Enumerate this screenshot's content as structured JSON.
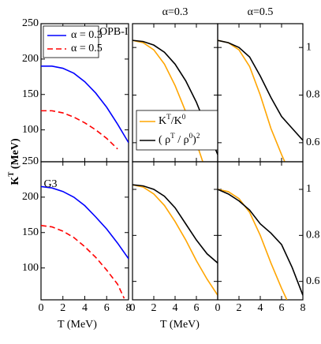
{
  "chart_data": [
    {
      "type": "line",
      "annotation": "IOPB-I",
      "legend": true,
      "ylabel": [
        {
          "text": "K"
        },
        {
          "sup": "T"
        },
        {
          "text": " (MeV)"
        }
      ],
      "xlim": [
        0,
        8
      ],
      "xticks": [
        0,
        2,
        4,
        6,
        8
      ],
      "show_xtick_labels": false,
      "ylim": [
        55,
        250
      ],
      "yticks": [
        100,
        150,
        200,
        250
      ],
      "ytick_side": "left",
      "series": [
        {
          "name": "α = 0.3",
          "color": "#0000ff",
          "x": [
            0,
            1,
            2,
            3,
            4,
            5,
            6,
            7,
            8
          ],
          "values": [
            190,
            190,
            187,
            180,
            168,
            152,
            132,
            108,
            82
          ]
        },
        {
          "name": "α = 0.5",
          "color": "#ff0000",
          "dashed": true,
          "x": [
            0,
            1,
            2,
            3,
            4,
            5,
            6,
            7
          ],
          "values": [
            127,
            127,
            124,
            118,
            110,
            100,
            88,
            73
          ]
        }
      ]
    },
    {
      "type": "line",
      "annotation": "G3",
      "xlabel": "T (MeV)",
      "xlim": [
        0,
        8
      ],
      "xticks": [
        0,
        2,
        4,
        6,
        8
      ],
      "show_xtick_labels": true,
      "ylim": [
        55,
        250
      ],
      "yticks": [
        100,
        150,
        200,
        250
      ],
      "ytick_side": "left",
      "series": [
        {
          "color": "#0000ff",
          "x": [
            0,
            1,
            2,
            3,
            4,
            5,
            6,
            7,
            8
          ],
          "values": [
            215,
            213,
            208,
            200,
            188,
            172,
            155,
            135,
            113
          ]
        },
        {
          "color": "#ff0000",
          "dashed": true,
          "x": [
            0,
            1,
            2,
            3,
            4,
            5,
            6,
            7,
            7.6
          ],
          "values": [
            160,
            158,
            152,
            143,
            130,
            115,
            97,
            77,
            57
          ]
        }
      ]
    },
    {
      "type": "line",
      "title": "α=0.3",
      "legend_entries": [
        [
          {
            "text": "K"
          },
          {
            "sup": "T"
          },
          {
            "text": "/K"
          },
          {
            "sup": "0"
          }
        ],
        [
          {
            "text": "( ρ"
          },
          {
            "sup": "T"
          },
          {
            "text": " / ρ"
          },
          {
            "sup": "0"
          },
          {
            "text": ")"
          },
          {
            "sup": "2"
          }
        ]
      ],
      "xlim": [
        0,
        8
      ],
      "xticks": [
        0,
        2,
        4,
        6,
        8
      ],
      "show_xtick_labels": false,
      "ylim": [
        0.52,
        1.1
      ],
      "yticks": [
        0.6,
        0.8,
        1
      ],
      "ytick_side": "none",
      "series": [
        {
          "color": "#ffa500",
          "x": [
            0,
            1,
            2,
            3,
            4,
            5,
            6,
            6.6
          ],
          "values": [
            1.03,
            1.02,
            0.99,
            0.93,
            0.84,
            0.73,
            0.6,
            0.52
          ]
        },
        {
          "color": "#000000",
          "x": [
            0,
            1,
            2,
            3,
            4,
            5,
            6,
            7,
            8
          ],
          "values": [
            1.03,
            1.025,
            1.01,
            0.98,
            0.93,
            0.86,
            0.77,
            0.66,
            0.55
          ]
        }
      ]
    },
    {
      "type": "line",
      "title": "α=0.5",
      "xlim": [
        0,
        8
      ],
      "xticks": [
        0,
        2,
        4,
        6,
        8
      ],
      "show_xtick_labels": false,
      "ylim": [
        0.52,
        1.1
      ],
      "yticks": [
        0.6,
        0.8,
        1
      ],
      "ytick_side": "right",
      "series": [
        {
          "color": "#ffa500",
          "x": [
            0,
            1,
            2,
            3,
            4,
            5,
            6,
            6.3
          ],
          "values": [
            1.03,
            1.02,
            0.99,
            0.92,
            0.8,
            0.66,
            0.55,
            0.52
          ]
        },
        {
          "color": "#000000",
          "x": [
            0,
            1,
            2,
            3,
            4,
            5,
            6,
            7,
            8
          ],
          "values": [
            1.03,
            1.02,
            1.0,
            0.96,
            0.88,
            0.79,
            0.71,
            0.66,
            0.61
          ]
        }
      ]
    },
    {
      "type": "line",
      "xlabel": "T (MeV)",
      "xlim": [
        0,
        8
      ],
      "xticks": [
        0,
        2,
        4,
        6
      ],
      "show_xtick_labels": true,
      "ylim": [
        0.52,
        1.12
      ],
      "yticks": [
        0.6,
        0.8,
        1
      ],
      "ytick_side": "none",
      "series": [
        {
          "color": "#ffa500",
          "x": [
            0,
            1,
            2,
            3,
            4,
            5,
            6,
            7,
            8
          ],
          "values": [
            1.02,
            1.01,
            0.98,
            0.93,
            0.86,
            0.78,
            0.69,
            0.61,
            0.54
          ]
        },
        {
          "color": "#000000",
          "x": [
            0,
            1,
            2,
            3,
            4,
            5,
            6,
            7,
            8
          ],
          "values": [
            1.02,
            1.015,
            1.0,
            0.97,
            0.92,
            0.85,
            0.78,
            0.72,
            0.68
          ]
        }
      ]
    },
    {
      "type": "line",
      "xlim": [
        0,
        8
      ],
      "xticks": [
        0,
        2,
        4,
        6,
        8
      ],
      "show_xtick_labels": true,
      "ylim": [
        0.52,
        1.12
      ],
      "yticks": [
        0.6,
        0.8,
        1
      ],
      "ytick_side": "right",
      "series": [
        {
          "color": "#ffa500",
          "x": [
            0,
            1,
            2,
            3,
            4,
            5,
            6,
            6.5
          ],
          "values": [
            1.0,
            0.99,
            0.96,
            0.9,
            0.8,
            0.68,
            0.57,
            0.52
          ]
        },
        {
          "color": "#000000",
          "x": [
            0,
            1,
            2,
            3,
            4,
            5,
            6,
            7,
            8
          ],
          "values": [
            1.0,
            0.98,
            0.95,
            0.91,
            0.85,
            0.81,
            0.76,
            0.66,
            0.54
          ]
        }
      ]
    }
  ]
}
